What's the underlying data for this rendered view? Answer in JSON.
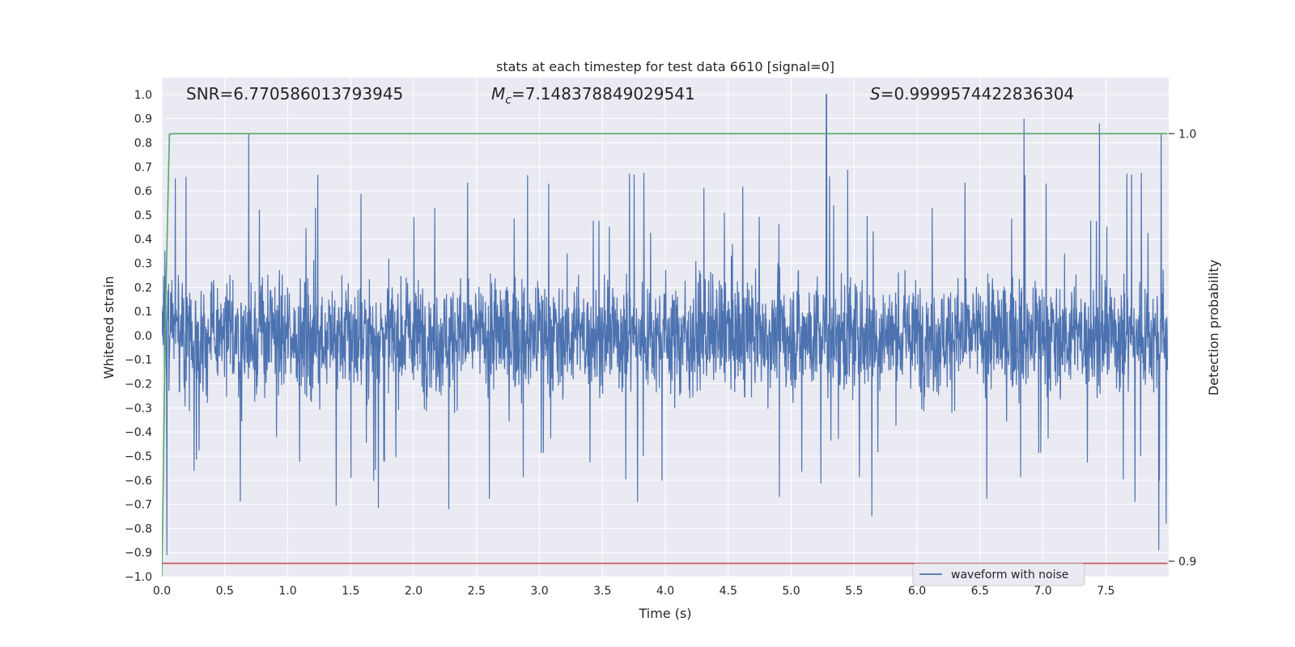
{
  "chart_data": {
    "type": "line",
    "title": "stats at each timestep for test data 6610 [signal=0]",
    "xlabel": "Time (s)",
    "ylabel": "Whitened strain",
    "y2label": "Detection probability",
    "xlim": [
      0,
      8.0
    ],
    "ylim": [
      -1.0,
      1.07
    ],
    "y2lim": [
      0.8964,
      1.0131
    ],
    "x_ticks": [
      "0.0",
      "0.5",
      "1.0",
      "1.5",
      "2.0",
      "2.5",
      "3.0",
      "3.5",
      "4.0",
      "4.5",
      "5.0",
      "5.5",
      "6.0",
      "6.5",
      "7.0",
      "7.5"
    ],
    "y_ticks": [
      "1.0",
      "0.9",
      "0.8",
      "0.7",
      "0.6",
      "0.5",
      "0.4",
      "0.3",
      "0.2",
      "0.1",
      "0.0",
      "−0.1",
      "−0.2",
      "−0.3",
      "−0.4",
      "−0.5",
      "−0.6",
      "−0.7",
      "−0.8",
      "−0.9",
      "−1.0"
    ],
    "y2_ticks": [
      "1.0",
      "0.9"
    ],
    "annotations": {
      "snr": "SNR=6.770586013793945",
      "mc_value": "=7.148378849029541",
      "s_value": "=0.9999574422836304"
    },
    "grid": true,
    "legend": {
      "position": "lower-right",
      "entries": [
        "waveform with noise"
      ]
    },
    "colors": {
      "background": "#eaeaf2",
      "grid": "#ffffff",
      "waveform": "#4c72b0",
      "probability": "#55a868",
      "threshold": "#c44e52"
    },
    "series": [
      {
        "name": "waveform with noise",
        "axis": "left",
        "style": "noisy-strain",
        "x_range": [
          0.0,
          7.99
        ],
        "typical_range": [
          -0.35,
          0.35
        ],
        "peaks": [
          [
            5.28,
            1.0
          ],
          [
            6.85,
            0.9
          ],
          [
            7.45,
            0.88
          ],
          [
            7.94,
            0.84
          ],
          [
            0.69,
            0.84
          ]
        ],
        "troughs": [
          [
            0.04,
            -0.91
          ],
          [
            7.92,
            -0.89
          ],
          [
            5.64,
            -0.75
          ],
          [
            2.28,
            -0.72
          ],
          [
            7.98,
            -0.78
          ]
        ]
      },
      {
        "axis": "right",
        "style": "detection-probability",
        "x": [
          0.0,
          0.03,
          0.06,
          0.1,
          7.99
        ],
        "y": [
          0.8964,
          0.96,
          0.9999,
          1.0,
          1.0
        ]
      },
      {
        "axis": "right",
        "style": "threshold",
        "x": [
          0.0,
          7.99
        ],
        "y": [
          0.8995,
          0.8995
        ]
      }
    ]
  }
}
